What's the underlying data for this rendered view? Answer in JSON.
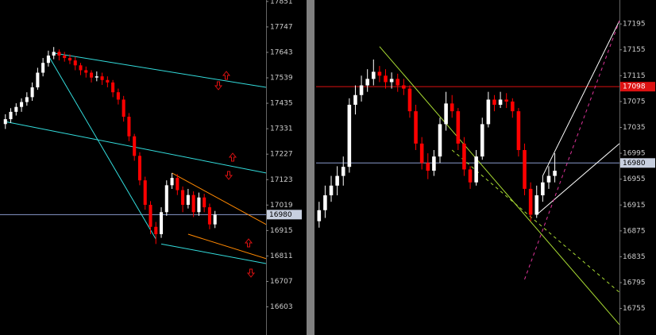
{
  "chart_data": [
    {
      "type": "candlestick",
      "up_color": "#ffffff",
      "down_color": "#ff0000",
      "xlim": [
        -1,
        48.5
      ],
      "ylim": [
        16488,
        17857
      ],
      "yticks": [
        17851,
        17747,
        17643,
        17539,
        17435,
        17331,
        17227,
        17123,
        17019,
        16915,
        16811,
        16707,
        16603
      ],
      "candles": [
        [
          17350,
          17390,
          17330,
          17370
        ],
        [
          17370,
          17415,
          17355,
          17400
        ],
        [
          17400,
          17435,
          17385,
          17420
        ],
        [
          17420,
          17455,
          17400,
          17440
        ],
        [
          17440,
          17480,
          17425,
          17460
        ],
        [
          17460,
          17520,
          17445,
          17500
        ],
        [
          17500,
          17580,
          17490,
          17560
        ],
        [
          17560,
          17620,
          17545,
          17600
        ],
        [
          17600,
          17650,
          17585,
          17630
        ],
        [
          17630,
          17665,
          17615,
          17645
        ],
        [
          17645,
          17655,
          17610,
          17630
        ],
        [
          17630,
          17645,
          17605,
          17620
        ],
        [
          17620,
          17635,
          17595,
          17610
        ],
        [
          17610,
          17625,
          17570,
          17590
        ],
        [
          17590,
          17600,
          17550,
          17570
        ],
        [
          17570,
          17585,
          17540,
          17560
        ],
        [
          17560,
          17570,
          17520,
          17540
        ],
        [
          17540,
          17565,
          17525,
          17545
        ],
        [
          17545,
          17560,
          17510,
          17530
        ],
        [
          17530,
          17545,
          17500,
          17520
        ],
        [
          17520,
          17530,
          17460,
          17480
        ],
        [
          17480,
          17495,
          17430,
          17450
        ],
        [
          17450,
          17465,
          17360,
          17380
        ],
        [
          17380,
          17395,
          17280,
          17300
        ],
        [
          17300,
          17310,
          17200,
          17220
        ],
        [
          17220,
          17235,
          17100,
          17120
        ],
        [
          17120,
          17135,
          17000,
          17020
        ],
        [
          17020,
          17035,
          16900,
          16930
        ],
        [
          16930,
          16950,
          16860,
          16900
        ],
        [
          16900,
          17010,
          16885,
          16990
        ],
        [
          16990,
          17120,
          16975,
          17100
        ],
        [
          17100,
          17150,
          17085,
          17130
        ],
        [
          17130,
          17145,
          17060,
          17080
        ],
        [
          17080,
          17095,
          16990,
          17020
        ],
        [
          17020,
          17085,
          17005,
          17060
        ],
        [
          17060,
          17075,
          16970,
          16990
        ],
        [
          16990,
          17070,
          16975,
          17050
        ],
        [
          17050,
          17065,
          16990,
          17010
        ],
        [
          17010,
          17025,
          16920,
          16940
        ],
        [
          16940,
          16995,
          16925,
          16980
        ]
      ],
      "lines": [
        {
          "x": [
            9,
            48.5
          ],
          "y": [
            17640,
            17500
          ],
          "color": "#33dddd",
          "dashed": false
        },
        {
          "x": [
            0,
            48.5
          ],
          "y": [
            17360,
            17150
          ],
          "color": "#33dddd",
          "dashed": false
        },
        {
          "x": [
            29,
            48.5
          ],
          "y": [
            16860,
            16780
          ],
          "color": "#33dddd",
          "dashed": false
        },
        {
          "x": [
            8,
            28
          ],
          "y": [
            17630,
            16880
          ],
          "color": "#33dddd",
          "dashed": false
        },
        {
          "x": [
            31,
            48.5
          ],
          "y": [
            17150,
            16940
          ],
          "color": "#ff8800",
          "dashed": false
        },
        {
          "x": [
            34,
            48.5
          ],
          "y": [
            16900,
            16800
          ],
          "color": "#ff8800",
          "dashed": false
        }
      ],
      "price_markers": [
        {
          "value": 16980,
          "line_color": "#8899cc",
          "box_color": "#c8d0e0",
          "text_color": "#000000"
        }
      ]
    },
    {
      "type": "candlestick",
      "up_color": "#ffffff",
      "down_color": "#ff0000",
      "xlim": [
        -0.5,
        49.7
      ],
      "ylim": [
        16714,
        17232
      ],
      "yticks": [
        17195,
        17155,
        17115,
        17075,
        17035,
        16995,
        16955,
        16915,
        16875,
        16835,
        16795,
        16755
      ],
      "candles": [
        [
          16890,
          16920,
          16880,
          16907
        ],
        [
          16907,
          16945,
          16895,
          16930
        ],
        [
          16930,
          16960,
          16920,
          16945
        ],
        [
          16945,
          16975,
          16930,
          16960
        ],
        [
          16960,
          16990,
          16945,
          16974
        ],
        [
          16974,
          17080,
          16965,
          17070
        ],
        [
          17070,
          17100,
          17055,
          17085
        ],
        [
          17085,
          17115,
          17075,
          17100
        ],
        [
          17100,
          17125,
          17090,
          17110
        ],
        [
          17110,
          17140,
          17100,
          17121
        ],
        [
          17121,
          17130,
          17105,
          17115
        ],
        [
          17115,
          17125,
          17095,
          17105
        ],
        [
          17105,
          17120,
          17095,
          17110
        ],
        [
          17110,
          17118,
          17090,
          17100
        ],
        [
          17100,
          17110,
          17085,
          17095
        ],
        [
          17095,
          17100,
          17050,
          17060
        ],
        [
          17060,
          17070,
          17000,
          17010
        ],
        [
          17010,
          17020,
          16970,
          16980
        ],
        [
          16980,
          16995,
          16955,
          16968
        ],
        [
          16968,
          17000,
          16960,
          16990
        ],
        [
          16990,
          17050,
          16980,
          17040
        ],
        [
          17040,
          17090,
          17030,
          17072
        ],
        [
          17072,
          17085,
          17050,
          17060
        ],
        [
          17060,
          17065,
          17000,
          17010
        ],
        [
          17010,
          17020,
          16960,
          16970
        ],
        [
          16970,
          16975,
          16940,
          16950
        ],
        [
          16950,
          17000,
          16945,
          16990
        ],
        [
          16990,
          17050,
          16985,
          17040
        ],
        [
          17040,
          17090,
          17035,
          17078
        ],
        [
          17078,
          17085,
          17060,
          17070
        ],
        [
          17070,
          17090,
          17065,
          17078
        ],
        [
          17078,
          17088,
          17065,
          17075
        ],
        [
          17075,
          17080,
          17050,
          17060
        ],
        [
          17060,
          17065,
          16990,
          17000
        ],
        [
          17000,
          17010,
          16930,
          16940
        ],
        [
          16940,
          16950,
          16890,
          16900
        ],
        [
          16900,
          16945,
          16895,
          16930
        ],
        [
          16930,
          16960,
          16920,
          16950
        ],
        [
          16950,
          16975,
          16940,
          16960
        ],
        [
          16960,
          16995,
          16950,
          16968
        ]
      ],
      "lines": [
        {
          "x": [
            37,
            49.7
          ],
          "y": [
            16960,
            17200
          ],
          "color": "#ffffff",
          "dashed": false
        },
        {
          "x": [
            36,
            49.7
          ],
          "y": [
            16900,
            17010
          ],
          "color": "#ffffff",
          "dashed": false
        },
        {
          "x": [
            22,
            49.7
          ],
          "y": [
            17000,
            16780
          ],
          "color": "#aadd33",
          "dashed": true
        },
        {
          "x": [
            10,
            49.7
          ],
          "y": [
            17160,
            16730
          ],
          "color": "#aadd33",
          "dashed": false
        },
        {
          "x": [
            34,
            49.7
          ],
          "y": [
            16800,
            17200
          ],
          "color": "#dd3399",
          "dashed": true
        }
      ],
      "price_markers": [
        {
          "value": 17098,
          "line_color": "#dd1111",
          "box_color": "#dd1111",
          "text_color": "#ffffff"
        },
        {
          "value": 16980,
          "line_color": "#8899cc",
          "box_color": "#c8d0e0",
          "text_color": "#000000"
        }
      ]
    }
  ]
}
